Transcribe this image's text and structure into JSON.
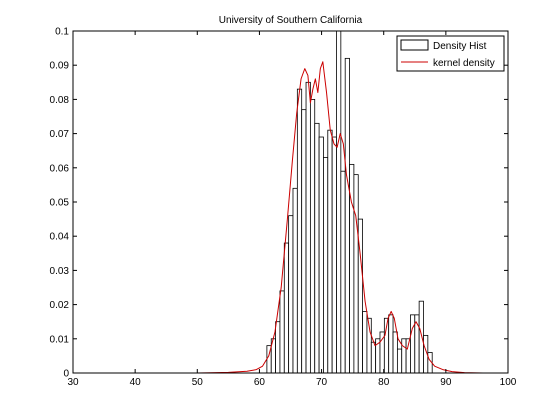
{
  "chart_data": {
    "type": "bar",
    "title": "University of Southern California",
    "xlabel": "",
    "ylabel": "",
    "xlim": [
      30,
      100
    ],
    "ylim": [
      0,
      0.1
    ],
    "xticks": [
      30,
      40,
      50,
      60,
      70,
      80,
      90,
      100
    ],
    "yticks": [
      0,
      0.01,
      0.02,
      0.03,
      0.04,
      0.05,
      0.06,
      0.07,
      0.08,
      0.09,
      0.1
    ],
    "ytick_labels": [
      "0",
      "0.01",
      "0.02",
      "0.03",
      "0.04",
      "0.05",
      "0.06",
      "0.07",
      "0.08",
      "0.09",
      "0.1"
    ],
    "grid": false,
    "legend": {
      "placement": "top-right",
      "entries": [
        "Density Hist",
        "kernel density"
      ]
    },
    "series": [
      {
        "name": "Density Hist",
        "type": "histogram",
        "bin_width": 0.7,
        "bin_starts": [
          61.2,
          61.9,
          62.6,
          63.3,
          64.0,
          64.7,
          65.4,
          66.1,
          66.8,
          67.5,
          68.2,
          68.9,
          69.6,
          70.3,
          71.0,
          71.7,
          72.4,
          73.1,
          73.8,
          74.5,
          75.2,
          75.9,
          76.6,
          77.3,
          78.0,
          78.7,
          79.4,
          80.1,
          80.8,
          81.5,
          82.2,
          82.9,
          83.6,
          84.3,
          85.0,
          85.7,
          86.4,
          87.1
        ],
        "values": [
          0.008,
          0.01,
          0.015,
          0.024,
          0.038,
          0.046,
          0.054,
          0.083,
          0.077,
          0.085,
          0.08,
          0.073,
          0.069,
          0.063,
          0.071,
          0.069,
          0.1,
          0.059,
          0.092,
          0.061,
          0.058,
          0.045,
          0.018,
          0.016,
          0.009,
          0.01,
          0.012,
          0.016,
          0.017,
          0.012,
          0.007,
          0.01,
          0.01,
          0.017,
          0.017,
          0.021,
          0.011,
          0.006
        ],
        "color": "#000000"
      },
      {
        "name": "kernel density",
        "type": "line",
        "color": "#cc0000",
        "x": [
          38,
          50,
          55,
          58,
          59.5,
          60.5,
          61.5,
          62.5,
          63.5,
          64.5,
          65.3,
          66,
          66.7,
          67.3,
          67.8,
          68.2,
          68.6,
          69,
          69.4,
          69.8,
          70.2,
          70.8,
          71.4,
          72,
          72.5,
          73,
          73.5,
          74,
          74.8,
          75.5,
          76.2,
          77,
          77.8,
          78.6,
          79.4,
          80.2,
          80.7,
          81.2,
          81.7,
          82.3,
          83,
          83.8,
          84.6,
          85.2,
          85.8,
          86.5,
          87.3,
          88.2,
          89.5,
          91,
          93,
          96
        ],
        "y": [
          0,
          0,
          0.0002,
          0.0005,
          0.001,
          0.002,
          0.005,
          0.012,
          0.025,
          0.045,
          0.062,
          0.076,
          0.086,
          0.089,
          0.087,
          0.079,
          0.083,
          0.086,
          0.082,
          0.089,
          0.091,
          0.082,
          0.071,
          0.067,
          0.066,
          0.07,
          0.067,
          0.058,
          0.05,
          0.046,
          0.035,
          0.021,
          0.012,
          0.008,
          0.009,
          0.011,
          0.016,
          0.018,
          0.016,
          0.01,
          0.008,
          0.007,
          0.013,
          0.015,
          0.013,
          0.008,
          0.004,
          0.002,
          0.001,
          0.0004,
          0.0001,
          0
        ]
      }
    ]
  }
}
